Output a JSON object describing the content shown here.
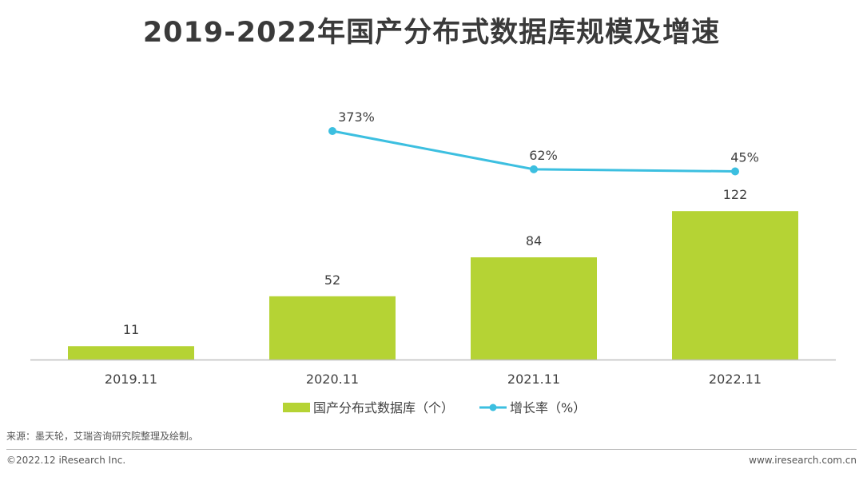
{
  "chart_data": {
    "type": "bar",
    "title": "2019-2022年国产分布式数据库规模及增速",
    "categories": [
      "2019.11",
      "2020.11",
      "2021.11",
      "2022.11"
    ],
    "series": [
      {
        "name": "国产分布式数据库（个）",
        "type": "bar",
        "values": [
          11,
          52,
          84,
          122
        ],
        "data_labels": [
          "11",
          "52",
          "84",
          "122"
        ],
        "color": "#b5d334"
      },
      {
        "name": "增长率（%）",
        "type": "line",
        "values": [
          null,
          373,
          62,
          45
        ],
        "data_labels": [
          null,
          "373%",
          "62%",
          "45%"
        ],
        "color": "#3cbfe0"
      }
    ],
    "xlabel": "",
    "ylabel": "",
    "legend": "bottom-center"
  },
  "source": "来源：墨天轮，艾瑞咨询研究院整理及绘制。",
  "copyright": "©2022.12 iResearch Inc.",
  "website": "www.iresearch.com.cn",
  "colors": {
    "bar": "#b5d334",
    "line": "#3cbfe0",
    "axis": "#bfbfbf",
    "text": "#404040"
  }
}
